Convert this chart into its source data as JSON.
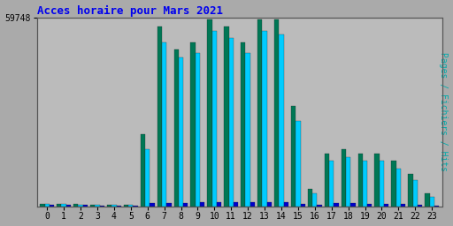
{
  "title": "Acces horaire pour Mars 2021",
  "ylabel_right": "Pages / Fichiers / Hits",
  "ytick_label": "59748",
  "hours": [
    0,
    1,
    2,
    3,
    4,
    5,
    6,
    7,
    8,
    9,
    10,
    11,
    12,
    13,
    14,
    15,
    16,
    17,
    18,
    19,
    20,
    21,
    22,
    23
  ],
  "fichiers": [
    0.013,
    0.013,
    0.011,
    0.009,
    0.007,
    0.007,
    0.38,
    0.95,
    0.83,
    0.87,
    0.99,
    0.95,
    0.87,
    0.99,
    0.99,
    0.53,
    0.09,
    0.28,
    0.3,
    0.28,
    0.28,
    0.24,
    0.17,
    0.07
  ],
  "pages": [
    0.011,
    0.011,
    0.009,
    0.007,
    0.005,
    0.005,
    0.3,
    0.87,
    0.79,
    0.81,
    0.93,
    0.89,
    0.81,
    0.93,
    0.91,
    0.45,
    0.07,
    0.24,
    0.26,
    0.24,
    0.24,
    0.2,
    0.14,
    0.05
  ],
  "hits": [
    0.007,
    0.007,
    0.005,
    0.004,
    0.003,
    0.003,
    0.018,
    0.018,
    0.018,
    0.022,
    0.022,
    0.022,
    0.022,
    0.022,
    0.022,
    0.012,
    0.007,
    0.016,
    0.016,
    0.013,
    0.013,
    0.011,
    0.009,
    0.004
  ],
  "color_pages": "#00CCFF",
  "color_fichiers": "#007755",
  "color_hits": "#0000CC",
  "background_color": "#AAAAAA",
  "plot_bg_color": "#BBBBBB",
  "title_color": "#0000EE",
  "ylabel_color": "#00AAAA",
  "grid_color": "#999999",
  "ylim_max": 1.0,
  "bar_width": 0.28
}
